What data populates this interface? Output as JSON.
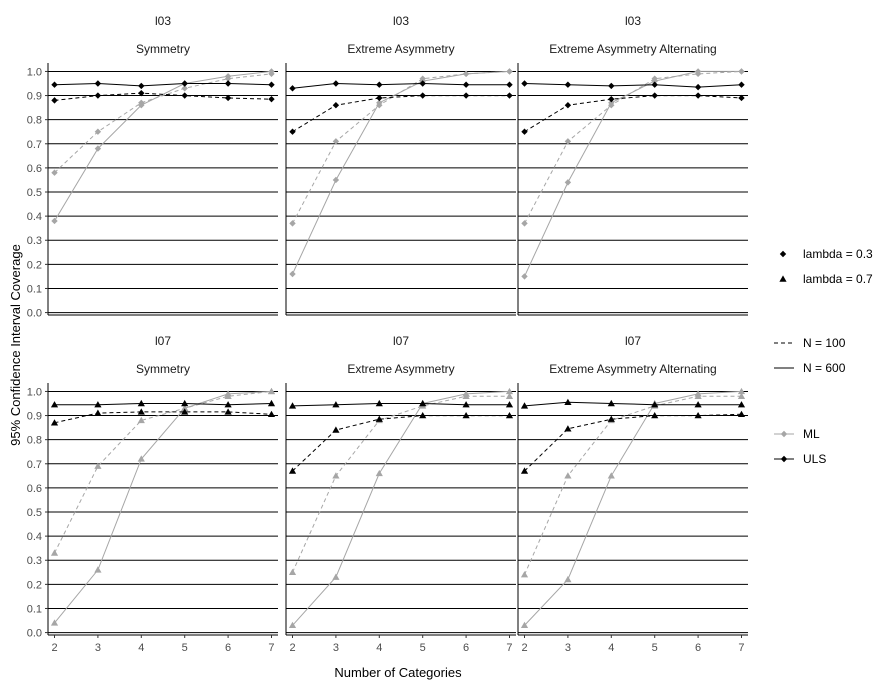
{
  "chart_data": {
    "type": "line",
    "xlabel": "Number of Categories",
    "ylabel": "95% Confidence Interval Coverage",
    "x": [
      2,
      3,
      4,
      5,
      6,
      7
    ],
    "xlim": [
      1.85,
      7.15
    ],
    "ylim": [
      -0.01,
      1.035
    ],
    "yticks": [
      0.0,
      0.1,
      0.2,
      0.3,
      0.4,
      0.5,
      0.6,
      0.7,
      0.8,
      0.9,
      1.0
    ],
    "ytick_labels": [
      "0.0",
      "0.1",
      "0.2",
      "0.3",
      "0.4",
      "0.5",
      "0.6",
      "0.7",
      "0.8",
      "0.9",
      "1.0"
    ],
    "grid": "horizontal major lines",
    "legend_placement": "right",
    "legend": {
      "shape": [
        {
          "label": "lambda = 0.3",
          "shape": "diamond"
        },
        {
          "label": "lambda = 0.7",
          "shape": "triangle"
        }
      ],
      "linetype": [
        {
          "label": "N = 100",
          "dash": "dashed"
        },
        {
          "label": "N = 600",
          "dash": "solid"
        }
      ],
      "color": [
        {
          "label": "ML",
          "color": "#a6a6a6"
        },
        {
          "label": "ULS",
          "color": "#000000"
        }
      ]
    },
    "panels": [
      {
        "row_label": "l03",
        "col_label": "Symmetry",
        "shape": "diamond",
        "series": [
          {
            "method": "ML",
            "n": "N = 100",
            "values": [
              0.58,
              0.75,
              0.87,
              0.93,
              0.97,
              0.99
            ]
          },
          {
            "method": "ML",
            "n": "N = 600",
            "values": [
              0.38,
              0.68,
              0.86,
              0.95,
              0.98,
              1.0
            ]
          },
          {
            "method": "ULS",
            "n": "N = 100",
            "values": [
              0.88,
              0.9,
              0.91,
              0.9,
              0.89,
              0.885
            ]
          },
          {
            "method": "ULS",
            "n": "N = 600",
            "values": [
              0.945,
              0.95,
              0.94,
              0.95,
              0.95,
              0.945
            ]
          }
        ]
      },
      {
        "row_label": "l03",
        "col_label": "Extreme Asymmetry",
        "shape": "diamond",
        "series": [
          {
            "method": "ML",
            "n": "N = 100",
            "values": [
              0.37,
              0.71,
              0.86,
              0.97,
              0.99,
              1.0
            ]
          },
          {
            "method": "ML",
            "n": "N = 600",
            "values": [
              0.16,
              0.55,
              0.87,
              0.96,
              0.99,
              1.0
            ]
          },
          {
            "method": "ULS",
            "n": "N = 100",
            "values": [
              0.75,
              0.86,
              0.89,
              0.9,
              0.9,
              0.9
            ]
          },
          {
            "method": "ULS",
            "n": "N = 600",
            "values": [
              0.93,
              0.95,
              0.945,
              0.95,
              0.945,
              0.945
            ]
          }
        ]
      },
      {
        "row_label": "l03",
        "col_label": "Extreme Asymmetry Alternating",
        "shape": "diamond",
        "series": [
          {
            "method": "ML",
            "n": "N = 100",
            "values": [
              0.37,
              0.71,
              0.86,
              0.97,
              0.99,
              1.0
            ]
          },
          {
            "method": "ML",
            "n": "N = 600",
            "values": [
              0.15,
              0.54,
              0.87,
              0.96,
              1.0,
              1.0
            ]
          },
          {
            "method": "ULS",
            "n": "N = 100",
            "values": [
              0.75,
              0.86,
              0.885,
              0.9,
              0.9,
              0.89
            ]
          },
          {
            "method": "ULS",
            "n": "N = 600",
            "values": [
              0.95,
              0.945,
              0.94,
              0.945,
              0.935,
              0.945
            ]
          }
        ]
      },
      {
        "row_label": "l07",
        "col_label": "Symmetry",
        "shape": "triangle",
        "series": [
          {
            "method": "ML",
            "n": "N = 100",
            "values": [
              0.33,
              0.69,
              0.88,
              0.93,
              0.98,
              1.0
            ]
          },
          {
            "method": "ML",
            "n": "N = 600",
            "values": [
              0.04,
              0.26,
              0.72,
              0.93,
              0.99,
              1.0
            ]
          },
          {
            "method": "ULS",
            "n": "N = 100",
            "values": [
              0.87,
              0.91,
              0.915,
              0.915,
              0.915,
              0.905
            ]
          },
          {
            "method": "ULS",
            "n": "N = 600",
            "values": [
              0.945,
              0.945,
              0.95,
              0.95,
              0.945,
              0.95
            ]
          }
        ]
      },
      {
        "row_label": "l07",
        "col_label": "Extreme Asymmetry",
        "shape": "triangle",
        "series": [
          {
            "method": "ML",
            "n": "N = 100",
            "values": [
              0.25,
              0.65,
              0.88,
              0.94,
              0.98,
              0.98
            ]
          },
          {
            "method": "ML",
            "n": "N = 600",
            "values": [
              0.03,
              0.23,
              0.66,
              0.95,
              0.99,
              1.0
            ]
          },
          {
            "method": "ULS",
            "n": "N = 100",
            "values": [
              0.67,
              0.84,
              0.885,
              0.9,
              0.9,
              0.9
            ]
          },
          {
            "method": "ULS",
            "n": "N = 600",
            "values": [
              0.94,
              0.945,
              0.95,
              0.95,
              0.945,
              0.945
            ]
          }
        ]
      },
      {
        "row_label": "l07",
        "col_label": "Extreme Asymmetry Alternating",
        "shape": "triangle",
        "series": [
          {
            "method": "ML",
            "n": "N = 100",
            "values": [
              0.24,
              0.65,
              0.88,
              0.94,
              0.98,
              0.98
            ]
          },
          {
            "method": "ML",
            "n": "N = 600",
            "values": [
              0.03,
              0.22,
              0.65,
              0.95,
              0.99,
              1.0
            ]
          },
          {
            "method": "ULS",
            "n": "N = 100",
            "values": [
              0.67,
              0.845,
              0.885,
              0.9,
              0.9,
              0.905
            ]
          },
          {
            "method": "ULS",
            "n": "N = 600",
            "values": [
              0.94,
              0.955,
              0.95,
              0.945,
              0.945,
              0.945
            ]
          }
        ]
      }
    ]
  }
}
